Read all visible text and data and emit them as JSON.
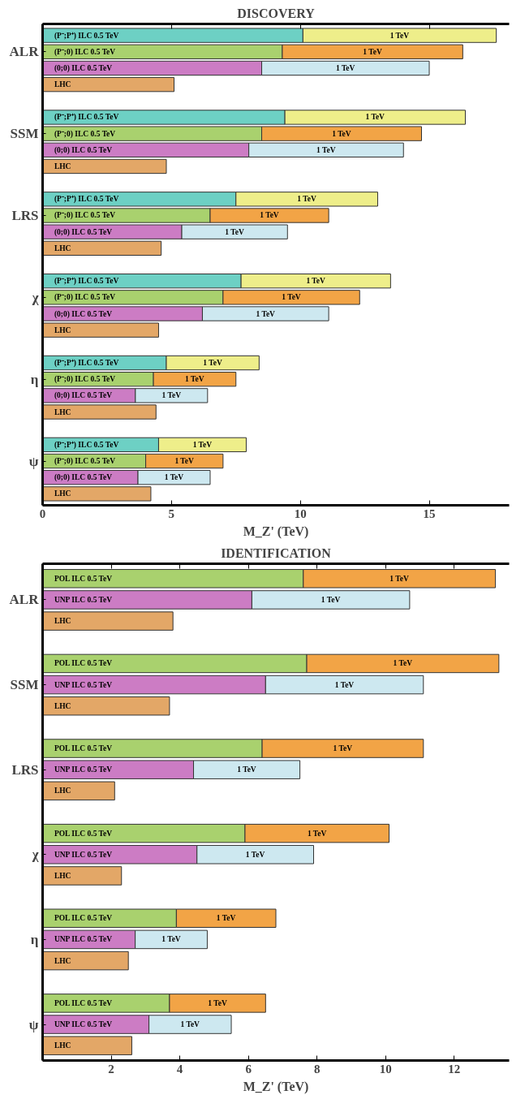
{
  "chart_data": [
    {
      "type": "bar",
      "orientation": "horizontal",
      "stacked": true,
      "title": "DISCOVERY",
      "xlabel": "M_Z' (TeV)",
      "categories": [
        null,
        "ALR",
        null,
        null,
        null,
        null,
        "SSM",
        null,
        null,
        null,
        null,
        "LRS",
        null,
        null,
        null,
        null,
        "χ",
        null,
        null,
        null,
        null,
        "η",
        null,
        null,
        null,
        null,
        "ψ",
        null,
        null
      ],
      "xlim": [
        0,
        18.1
      ],
      "xticks": [
        0,
        5,
        10,
        15
      ],
      "grid": false,
      "legend": false,
      "series": [
        {
          "name": "(P⁻;P⁺) ILC 0.5 TeV",
          "color": "#6dd0c4",
          "values": [
            10.1,
            null,
            null,
            null,
            null,
            9.4,
            null,
            null,
            null,
            null,
            7.5,
            null,
            null,
            null,
            null,
            7.7,
            null,
            null,
            null,
            null,
            4.8,
            null,
            null,
            null,
            null,
            4.5,
            null,
            null,
            null
          ]
        },
        {
          "name": "1 TeV",
          "color": "#eeee8a",
          "values": [
            7.5,
            null,
            null,
            null,
            null,
            7.0,
            null,
            null,
            null,
            null,
            5.5,
            null,
            null,
            null,
            null,
            5.8,
            null,
            null,
            null,
            null,
            3.6,
            null,
            null,
            null,
            null,
            3.4,
            null,
            null,
            null
          ]
        },
        {
          "name": "(P⁻;0) ILC 0.5 TeV",
          "color": "#a9d16e",
          "values": [
            null,
            9.3,
            null,
            null,
            null,
            null,
            8.5,
            null,
            null,
            null,
            null,
            6.5,
            null,
            null,
            null,
            null,
            7.0,
            null,
            null,
            null,
            null,
            4.3,
            null,
            null,
            null,
            null,
            4.0,
            null,
            null
          ]
        },
        {
          "name": "1 TeV",
          "color": "#f2a446",
          "values": [
            null,
            7.0,
            null,
            null,
            null,
            null,
            6.2,
            null,
            null,
            null,
            null,
            4.6,
            null,
            null,
            null,
            null,
            5.3,
            null,
            null,
            null,
            null,
            3.2,
            null,
            null,
            null,
            null,
            3.0,
            null,
            null
          ]
        },
        {
          "name": "(0;0) ILC 0.5 TeV",
          "color": "#cc7cc4",
          "values": [
            null,
            null,
            8.5,
            null,
            null,
            null,
            null,
            8.0,
            null,
            null,
            null,
            null,
            5.4,
            null,
            null,
            null,
            null,
            6.2,
            null,
            null,
            null,
            null,
            3.6,
            null,
            null,
            null,
            null,
            3.7,
            null
          ]
        },
        {
          "name": "1 TeV",
          "color": "#cde8f0",
          "values": [
            null,
            null,
            6.5,
            null,
            null,
            null,
            null,
            6.0,
            null,
            null,
            null,
            null,
            4.1,
            null,
            null,
            null,
            null,
            4.9,
            null,
            null,
            null,
            null,
            2.8,
            null,
            null,
            null,
            null,
            2.8,
            null
          ]
        },
        {
          "name": "LHC",
          "color": "#e3a767",
          "values": [
            null,
            null,
            null,
            5.1,
            null,
            null,
            null,
            null,
            4.8,
            null,
            null,
            null,
            null,
            4.6,
            null,
            null,
            null,
            null,
            4.5,
            null,
            null,
            null,
            null,
            4.4,
            null,
            null,
            null,
            null,
            4.2
          ]
        }
      ]
    },
    {
      "type": "bar",
      "orientation": "horizontal",
      "stacked": true,
      "title": "IDENTIFICATION",
      "xlabel": "M_Z' (TeV)",
      "categories": [
        null,
        "ALR",
        null,
        null,
        null,
        "SSM",
        null,
        null,
        null,
        "LRS",
        null,
        null,
        null,
        "χ",
        null,
        null,
        null,
        "η",
        null,
        null,
        null,
        "ψ",
        null
      ],
      "xlim": [
        0,
        13.6
      ],
      "xticks": [
        {
          "value": 0,
          "label": null
        },
        2,
        4,
        6,
        8,
        10,
        12
      ],
      "grid": false,
      "legend": false,
      "series": [
        {
          "name": "POL ILC 0.5 TeV",
          "color": "#a9d16e",
          "values": [
            7.6,
            null,
            null,
            null,
            7.7,
            null,
            null,
            null,
            6.4,
            null,
            null,
            null,
            5.9,
            null,
            null,
            null,
            3.9,
            null,
            null,
            null,
            3.7,
            null,
            null
          ]
        },
        {
          "name": "1 TeV",
          "color": "#f2a446",
          "values": [
            5.6,
            null,
            null,
            null,
            5.6,
            null,
            null,
            null,
            4.7,
            null,
            null,
            null,
            4.2,
            null,
            null,
            null,
            2.9,
            null,
            null,
            null,
            2.8,
            null,
            null
          ]
        },
        {
          "name": "UNP ILC 0.5 TeV",
          "color": "#cc7cc4",
          "values": [
            null,
            6.1,
            null,
            null,
            null,
            6.5,
            null,
            null,
            null,
            4.4,
            null,
            null,
            null,
            4.5,
            null,
            null,
            null,
            2.7,
            null,
            null,
            null,
            3.1,
            null
          ]
        },
        {
          "name": "1 TeV",
          "color": "#cde8f0",
          "values": [
            null,
            4.6,
            null,
            null,
            null,
            4.6,
            null,
            null,
            null,
            3.1,
            null,
            null,
            null,
            3.4,
            null,
            null,
            null,
            2.1,
            null,
            null,
            null,
            2.4,
            null
          ]
        },
        {
          "name": "LHC",
          "color": "#e3a767",
          "values": [
            null,
            null,
            3.8,
            null,
            null,
            null,
            3.7,
            null,
            null,
            null,
            2.1,
            null,
            null,
            null,
            2.3,
            null,
            null,
            null,
            2.5,
            null,
            null,
            null,
            2.6
          ]
        }
      ]
    }
  ]
}
